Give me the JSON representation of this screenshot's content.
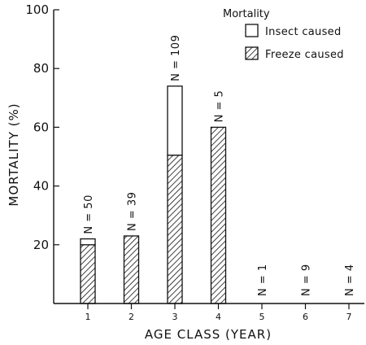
{
  "chart_data": {
    "type": "bar",
    "stacked": true,
    "categories": [
      "1",
      "2",
      "3",
      "4",
      "5",
      "6",
      "7"
    ],
    "series": [
      {
        "name": "Freeze caused",
        "values": [
          20,
          23,
          50.5,
          60,
          0,
          0,
          0
        ],
        "pattern": "hatch"
      },
      {
        "name": "Insect caused",
        "values": [
          2,
          0,
          23.5,
          0,
          0,
          0,
          0
        ],
        "pattern": "open"
      }
    ],
    "n_labels": [
      "N = 50",
      "N = 39",
      "N = 109",
      "N = 5",
      "N = 1",
      "N = 9",
      "N = 4"
    ],
    "yticks": [
      "100",
      "80",
      "60",
      "40",
      "20"
    ],
    "xlabel": "AGE CLASS (YEAR)",
    "ylabel": "MORTALITY (%)",
    "ylim": [
      0,
      100
    ],
    "legend": {
      "title": "Mortality",
      "position": "top-right"
    },
    "colors": {
      "ink": "#111111",
      "background": "#ffffff"
    }
  }
}
